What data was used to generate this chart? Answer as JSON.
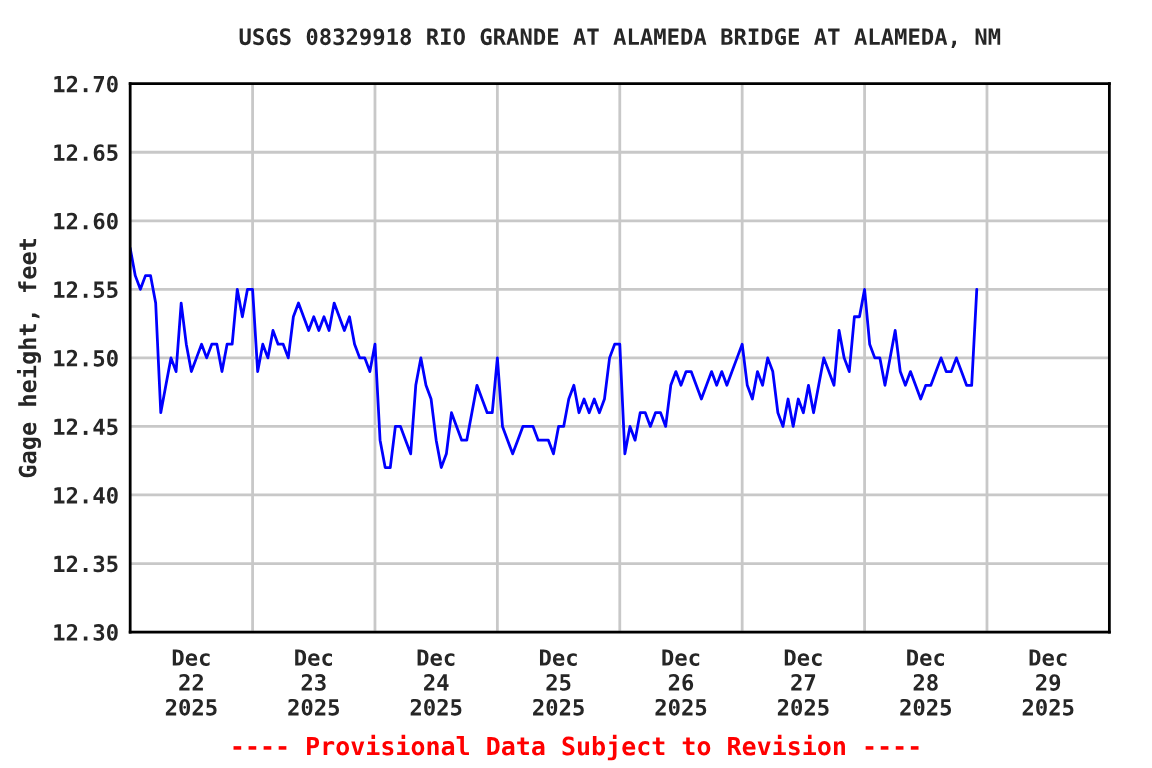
{
  "chart_data": {
    "type": "line",
    "title": "USGS 08329918 RIO GRANDE AT ALAMEDA BRIDGE AT ALAMEDA, NM",
    "ylabel": "Gage height, feet",
    "annotations": [
      "---- Provisional Data Subject to Revision ----"
    ],
    "xlim": [
      "2025-12-22T00:00",
      "2025-12-30T00:00"
    ],
    "xticks": [
      {
        "value": "2025-12-22T12:00",
        "label": "Dec\n22\n2025"
      },
      {
        "value": "2025-12-23T12:00",
        "label": "Dec\n23\n2025"
      },
      {
        "value": "2025-12-24T12:00",
        "label": "Dec\n24\n2025"
      },
      {
        "value": "2025-12-25T12:00",
        "label": "Dec\n25\n2025"
      },
      {
        "value": "2025-12-26T12:00",
        "label": "Dec\n26\n2025"
      },
      {
        "value": "2025-12-27T12:00",
        "label": "Dec\n27\n2025"
      },
      {
        "value": "2025-12-28T12:00",
        "label": "Dec\n28\n2025"
      },
      {
        "value": "2025-12-29T12:00",
        "label": "Dec\n29\n2025"
      },
      {
        "value": "2025-12-23T00:00",
        "label": null
      },
      {
        "value": "2025-12-24T00:00",
        "label": null
      },
      {
        "value": "2025-12-25T00:00",
        "label": null
      },
      {
        "value": "2025-12-26T00:00",
        "label": null
      },
      {
        "value": "2025-12-27T00:00",
        "label": null
      },
      {
        "value": "2025-12-28T00:00",
        "label": null
      },
      {
        "value": "2025-12-29T00:00",
        "label": null
      }
    ],
    "ylim": [
      12.3,
      12.7
    ],
    "yticks": [
      {
        "value": 12.3,
        "label": "12.30"
      },
      {
        "value": 12.35,
        "label": "12.35"
      },
      {
        "value": 12.4,
        "label": "12.40"
      },
      {
        "value": 12.45,
        "label": "12.45"
      },
      {
        "value": 12.5,
        "label": "12.50"
      },
      {
        "value": 12.55,
        "label": "12.55"
      },
      {
        "value": 12.6,
        "label": "12.60"
      },
      {
        "value": 12.65,
        "label": "12.65"
      },
      {
        "value": 12.7,
        "label": "12.70"
      }
    ],
    "grid": true,
    "x": [
      "2025-12-22T00:00",
      "2025-12-22T01:00",
      "2025-12-22T02:00",
      "2025-12-22T03:00",
      "2025-12-22T04:00",
      "2025-12-22T05:00",
      "2025-12-22T06:00",
      "2025-12-22T07:00",
      "2025-12-22T08:00",
      "2025-12-22T09:00",
      "2025-12-22T10:00",
      "2025-12-22T11:00",
      "2025-12-22T12:00",
      "2025-12-22T13:00",
      "2025-12-22T14:00",
      "2025-12-22T15:00",
      "2025-12-22T16:00",
      "2025-12-22T17:00",
      "2025-12-22T18:00",
      "2025-12-22T19:00",
      "2025-12-22T20:00",
      "2025-12-22T21:00",
      "2025-12-22T22:00",
      "2025-12-22T23:00",
      "2025-12-23T00:00",
      "2025-12-23T01:00",
      "2025-12-23T02:00",
      "2025-12-23T03:00",
      "2025-12-23T04:00",
      "2025-12-23T05:00",
      "2025-12-23T06:00",
      "2025-12-23T07:00",
      "2025-12-23T08:00",
      "2025-12-23T09:00",
      "2025-12-23T10:00",
      "2025-12-23T11:00",
      "2025-12-23T12:00",
      "2025-12-23T13:00",
      "2025-12-23T14:00",
      "2025-12-23T15:00",
      "2025-12-23T16:00",
      "2025-12-23T17:00",
      "2025-12-23T18:00",
      "2025-12-23T19:00",
      "2025-12-23T20:00",
      "2025-12-23T21:00",
      "2025-12-23T22:00",
      "2025-12-23T23:00",
      "2025-12-24T00:00",
      "2025-12-24T01:00",
      "2025-12-24T02:00",
      "2025-12-24T03:00",
      "2025-12-24T04:00",
      "2025-12-24T05:00",
      "2025-12-24T06:00",
      "2025-12-24T07:00",
      "2025-12-24T08:00",
      "2025-12-24T09:00",
      "2025-12-24T10:00",
      "2025-12-24T11:00",
      "2025-12-24T12:00",
      "2025-12-24T13:00",
      "2025-12-24T14:00",
      "2025-12-24T15:00",
      "2025-12-24T16:00",
      "2025-12-24T17:00",
      "2025-12-24T18:00",
      "2025-12-24T19:00",
      "2025-12-24T20:00",
      "2025-12-24T21:00",
      "2025-12-24T22:00",
      "2025-12-24T23:00",
      "2025-12-25T00:00",
      "2025-12-25T01:00",
      "2025-12-25T02:00",
      "2025-12-25T03:00",
      "2025-12-25T04:00",
      "2025-12-25T05:00",
      "2025-12-25T06:00",
      "2025-12-25T07:00",
      "2025-12-25T08:00",
      "2025-12-25T09:00",
      "2025-12-25T10:00",
      "2025-12-25T11:00",
      "2025-12-25T12:00",
      "2025-12-25T13:00",
      "2025-12-25T14:00",
      "2025-12-25T15:00",
      "2025-12-25T16:00",
      "2025-12-25T17:00",
      "2025-12-25T18:00",
      "2025-12-25T19:00",
      "2025-12-25T20:00",
      "2025-12-25T21:00",
      "2025-12-25T22:00",
      "2025-12-25T23:00",
      "2025-12-26T00:00",
      "2025-12-26T01:00",
      "2025-12-26T02:00",
      "2025-12-26T03:00",
      "2025-12-26T04:00",
      "2025-12-26T05:00",
      "2025-12-26T06:00",
      "2025-12-26T07:00",
      "2025-12-26T08:00",
      "2025-12-26T09:00",
      "2025-12-26T10:00",
      "2025-12-26T11:00",
      "2025-12-26T12:00",
      "2025-12-26T13:00",
      "2025-12-26T14:00",
      "2025-12-26T15:00",
      "2025-12-26T16:00",
      "2025-12-26T17:00",
      "2025-12-26T18:00",
      "2025-12-26T19:00",
      "2025-12-26T20:00",
      "2025-12-26T21:00",
      "2025-12-26T22:00",
      "2025-12-26T23:00",
      "2025-12-27T00:00",
      "2025-12-27T01:00",
      "2025-12-27T02:00",
      "2025-12-27T03:00",
      "2025-12-27T04:00",
      "2025-12-27T05:00",
      "2025-12-27T06:00",
      "2025-12-27T07:00",
      "2025-12-27T08:00",
      "2025-12-27T09:00",
      "2025-12-27T10:00",
      "2025-12-27T11:00",
      "2025-12-27T12:00",
      "2025-12-27T13:00",
      "2025-12-27T14:00",
      "2025-12-27T15:00",
      "2025-12-27T16:00",
      "2025-12-27T17:00",
      "2025-12-27T18:00",
      "2025-12-27T19:00",
      "2025-12-27T20:00",
      "2025-12-27T21:00",
      "2025-12-27T22:00",
      "2025-12-27T23:00",
      "2025-12-28T00:00",
      "2025-12-28T01:00",
      "2025-12-28T02:00",
      "2025-12-28T03:00",
      "2025-12-28T04:00",
      "2025-12-28T05:00",
      "2025-12-28T06:00",
      "2025-12-28T07:00",
      "2025-12-28T08:00",
      "2025-12-28T09:00",
      "2025-12-28T10:00",
      "2025-12-28T11:00",
      "2025-12-28T12:00",
      "2025-12-28T13:00",
      "2025-12-28T14:00",
      "2025-12-28T15:00",
      "2025-12-28T16:00",
      "2025-12-28T17:00",
      "2025-12-28T18:00",
      "2025-12-28T19:00",
      "2025-12-28T20:00",
      "2025-12-28T21:00",
      "2025-12-28T22:00"
    ],
    "series": [
      {
        "color": "#0000ff",
        "values": [
          12.58,
          12.56,
          12.55,
          12.56,
          12.56,
          12.54,
          12.46,
          12.48,
          12.5,
          12.49,
          12.54,
          12.51,
          12.49,
          12.5,
          12.51,
          12.5,
          12.51,
          12.51,
          12.49,
          12.51,
          12.51,
          12.55,
          12.53,
          12.55,
          12.55,
          12.49,
          12.51,
          12.5,
          12.52,
          12.51,
          12.51,
          12.5,
          12.53,
          12.54,
          12.53,
          12.52,
          12.53,
          12.52,
          12.53,
          12.52,
          12.54,
          12.53,
          12.52,
          12.53,
          12.51,
          12.5,
          12.5,
          12.49,
          12.51,
          12.44,
          12.42,
          12.42,
          12.45,
          12.45,
          12.44,
          12.43,
          12.48,
          12.5,
          12.48,
          12.47,
          12.44,
          12.42,
          12.43,
          12.46,
          12.45,
          12.44,
          12.44,
          12.46,
          12.48,
          12.47,
          12.46,
          12.46,
          12.5,
          12.45,
          12.44,
          12.43,
          12.44,
          12.45,
          12.45,
          12.45,
          12.44,
          12.44,
          12.44,
          12.43,
          12.45,
          12.45,
          12.47,
          12.48,
          12.46,
          12.47,
          12.46,
          12.47,
          12.46,
          12.47,
          12.5,
          12.51,
          12.51,
          12.43,
          12.45,
          12.44,
          12.46,
          12.46,
          12.45,
          12.46,
          12.46,
          12.45,
          12.48,
          12.49,
          12.48,
          12.49,
          12.49,
          12.48,
          12.47,
          12.48,
          12.49,
          12.48,
          12.49,
          12.48,
          12.49,
          12.5,
          12.51,
          12.48,
          12.47,
          12.49,
          12.48,
          12.5,
          12.49,
          12.46,
          12.45,
          12.47,
          12.45,
          12.47,
          12.46,
          12.48,
          12.46,
          12.48,
          12.5,
          12.49,
          12.48,
          12.52,
          12.5,
          12.49,
          12.53,
          12.53,
          12.55,
          12.51,
          12.5,
          12.5,
          12.48,
          12.5,
          12.52,
          12.49,
          12.48,
          12.49,
          12.48,
          12.47,
          12.48,
          12.48,
          12.49,
          12.5,
          12.49,
          12.49,
          12.5,
          12.49,
          12.48,
          12.48,
          12.55
        ]
      }
    ]
  }
}
